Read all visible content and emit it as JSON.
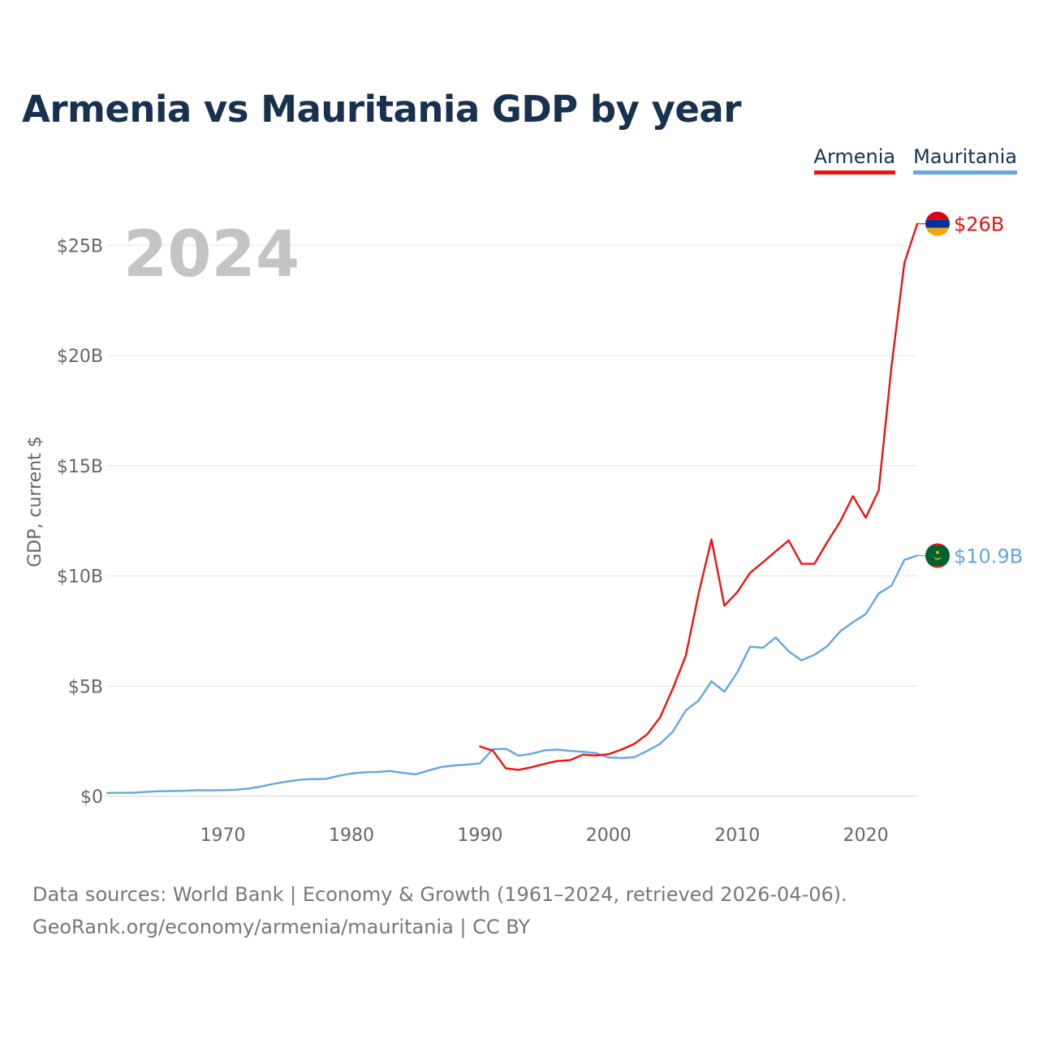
{
  "title": "Armenia vs Mauritania GDP by year",
  "colors": {
    "armenia": "#ee1111",
    "mauritania": "#62a6e5",
    "grid": "#e6e6e6",
    "axis_text": "#666666",
    "year_watermark": "#c4c4c4"
  },
  "legend": [
    {
      "name": "Armenia",
      "color": "#ee1111"
    },
    {
      "name": "Mauritania",
      "color": "#62a6e5"
    }
  ],
  "year_label": "2024",
  "end_labels": {
    "armenia": "$26B",
    "mauritania": "$10.9B"
  },
  "flags": {
    "armenia": "armenia-flag-icon",
    "mauritania": "mauritania-flag-icon"
  },
  "footer": {
    "line1": "Data sources: World Bank | Economy & Growth (1961–2024, retrieved 2026-04-06).",
    "line2": "GeoRank.org/economy/armenia/mauritania | CC BY"
  },
  "chart_data": {
    "type": "line",
    "title": "Armenia vs Mauritania GDP by year",
    "xlabel": "",
    "ylabel": "GDP, current $",
    "xlim": [
      1961,
      2024
    ],
    "ylim": [
      0,
      27
    ],
    "x_ticks": [
      1970,
      1980,
      1990,
      2000,
      2010,
      2020
    ],
    "x_tick_labels": [
      "1970",
      "1980",
      "1990",
      "2000",
      "2010",
      "2020"
    ],
    "y_ticks": [
      0,
      5,
      10,
      15,
      20,
      25
    ],
    "y_tick_labels": [
      "$0",
      "$5B",
      "$10B",
      "$15B",
      "$20B",
      "$25B"
    ],
    "grid": true,
    "legend_position": "top-right",
    "series": [
      {
        "name": "Armenia",
        "unit": "billion current US$",
        "points": [
          [
            1990,
            2.26
          ],
          [
            1991,
            2.07
          ],
          [
            1992,
            1.27
          ],
          [
            1993,
            1.2
          ],
          [
            1994,
            1.32
          ],
          [
            1995,
            1.47
          ],
          [
            1996,
            1.6
          ],
          [
            1997,
            1.64
          ],
          [
            1998,
            1.89
          ],
          [
            1999,
            1.85
          ],
          [
            2000,
            1.91
          ],
          [
            2001,
            2.12
          ],
          [
            2002,
            2.38
          ],
          [
            2003,
            2.81
          ],
          [
            2004,
            3.58
          ],
          [
            2005,
            4.9
          ],
          [
            2006,
            6.38
          ],
          [
            2007,
            9.21
          ],
          [
            2008,
            11.66
          ],
          [
            2009,
            8.65
          ],
          [
            2010,
            9.26
          ],
          [
            2011,
            10.14
          ],
          [
            2012,
            10.62
          ],
          [
            2013,
            11.12
          ],
          [
            2014,
            11.61
          ],
          [
            2015,
            10.55
          ],
          [
            2016,
            10.55
          ],
          [
            2017,
            11.53
          ],
          [
            2018,
            12.46
          ],
          [
            2019,
            13.62
          ],
          [
            2020,
            12.64
          ],
          [
            2021,
            13.88
          ],
          [
            2022,
            19.51
          ],
          [
            2023,
            24.21
          ],
          [
            2024,
            25.98
          ]
        ]
      },
      {
        "name": "Mauritania",
        "unit": "billion current US$",
        "points": [
          [
            1961,
            0.15
          ],
          [
            1962,
            0.16
          ],
          [
            1963,
            0.16
          ],
          [
            1964,
            0.2
          ],
          [
            1965,
            0.23
          ],
          [
            1966,
            0.24
          ],
          [
            1967,
            0.25
          ],
          [
            1968,
            0.28
          ],
          [
            1969,
            0.27
          ],
          [
            1970,
            0.28
          ],
          [
            1971,
            0.3
          ],
          [
            1972,
            0.35
          ],
          [
            1973,
            0.45
          ],
          [
            1974,
            0.57
          ],
          [
            1975,
            0.67
          ],
          [
            1976,
            0.75
          ],
          [
            1977,
            0.78
          ],
          [
            1978,
            0.79
          ],
          [
            1979,
            0.93
          ],
          [
            1980,
            1.03
          ],
          [
            1981,
            1.09
          ],
          [
            1982,
            1.1
          ],
          [
            1983,
            1.15
          ],
          [
            1984,
            1.06
          ],
          [
            1985,
            1.0
          ],
          [
            1986,
            1.17
          ],
          [
            1987,
            1.33
          ],
          [
            1988,
            1.4
          ],
          [
            1989,
            1.44
          ],
          [
            1990,
            1.5
          ],
          [
            1991,
            2.14
          ],
          [
            1992,
            2.16
          ],
          [
            1993,
            1.84
          ],
          [
            1994,
            1.93
          ],
          [
            1995,
            2.08
          ],
          [
            1996,
            2.12
          ],
          [
            1997,
            2.06
          ],
          [
            1998,
            2.02
          ],
          [
            1999,
            1.96
          ],
          [
            2000,
            1.76
          ],
          [
            2001,
            1.74
          ],
          [
            2002,
            1.77
          ],
          [
            2003,
            2.06
          ],
          [
            2004,
            2.38
          ],
          [
            2005,
            2.94
          ],
          [
            2006,
            3.9
          ],
          [
            2007,
            4.34
          ],
          [
            2008,
            5.22
          ],
          [
            2009,
            4.74
          ],
          [
            2010,
            5.62
          ],
          [
            2011,
            6.79
          ],
          [
            2012,
            6.74
          ],
          [
            2013,
            7.21
          ],
          [
            2014,
            6.58
          ],
          [
            2015,
            6.17
          ],
          [
            2016,
            6.42
          ],
          [
            2017,
            6.81
          ],
          [
            2018,
            7.48
          ],
          [
            2019,
            7.9
          ],
          [
            2020,
            8.27
          ],
          [
            2021,
            9.2
          ],
          [
            2022,
            9.56
          ],
          [
            2023,
            10.73
          ],
          [
            2024,
            10.92
          ]
        ]
      }
    ]
  }
}
